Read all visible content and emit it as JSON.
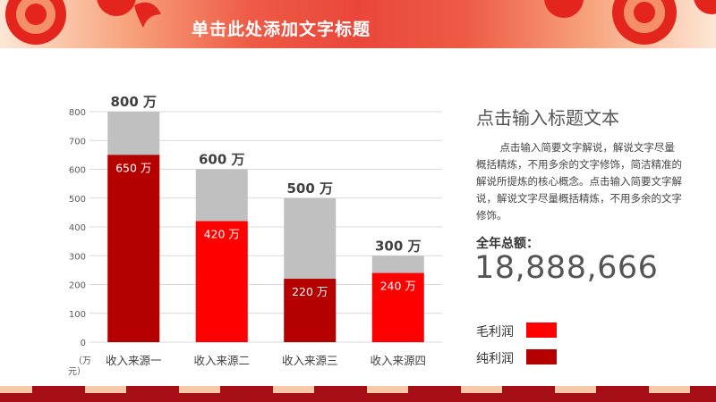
{
  "header": {
    "title": "单击此处添加文字标题"
  },
  "side": {
    "title": "点击输入标题文本",
    "description": "点击输入简要文字解说，解说文字尽量概括精炼，不用多余的文字修饰，简洁精准的 解说所提炼的核心概念。点击输入简要文字解说，解说文字尽量概括精炼，不用多余的文字修饰。",
    "total_label": "全年总额：",
    "total_value": "18,888,666",
    "legend": [
      {
        "label": "毛利润",
        "color": "#ff0000"
      },
      {
        "label": "纯利润",
        "color": "#b50000"
      }
    ]
  },
  "chart_data": {
    "type": "bar",
    "categories": [
      "收入来源一",
      "收入来源二",
      "收入来源三",
      "收入来源四"
    ],
    "series": [
      {
        "name": "纯利润",
        "values": [
          650,
          420,
          220,
          240
        ],
        "labels": [
          "650 万",
          "420 万",
          "220 万",
          "240 万"
        ]
      },
      {
        "name": "毛利润",
        "values": [
          800,
          600,
          500,
          300
        ],
        "labels": [
          "800 万",
          "600 万",
          "500 万",
          "300 万"
        ]
      }
    ],
    "bar_colors": [
      "#b50000",
      "#ff0000",
      "#b50000",
      "#ff0000"
    ],
    "background_bar_color": "#c0c0c0",
    "ylim": [
      0,
      800
    ],
    "yticks": [
      0,
      100,
      200,
      300,
      400,
      500,
      600,
      700,
      800
    ],
    "unit_label": [
      "（万",
      "元）"
    ],
    "grid": true
  },
  "colors": {
    "accent": "#e9473a",
    "dark_red": "#a50e14"
  }
}
